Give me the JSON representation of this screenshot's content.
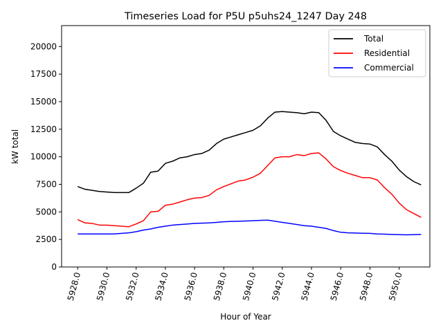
{
  "chart_data": {
    "type": "line",
    "title": "Timeseries Load for P5U p5uhs24_1247  Day 248",
    "xlabel": "Hour of Year",
    "ylabel": "kW total",
    "xlim": [
      5926.9,
      5952.1
    ],
    "ylim": [
      0,
      21900
    ],
    "xticks": [
      5928,
      5930,
      5932,
      5934,
      5936,
      5938,
      5940,
      5942,
      5944,
      5946,
      5948,
      5950
    ],
    "xtick_labels": [
      "5928.0",
      "5930.0",
      "5932.0",
      "5934.0",
      "5936.0",
      "5938.0",
      "5940.0",
      "5942.0",
      "5944.0",
      "5946.0",
      "5948.0",
      "5950.0"
    ],
    "yticks": [
      0,
      2500,
      5000,
      7500,
      10000,
      12500,
      15000,
      17500,
      20000
    ],
    "ytick_labels": [
      "0",
      "2500",
      "5000",
      "7500",
      "10000",
      "12500",
      "15000",
      "17500",
      "20000"
    ],
    "legend_position": "top-right",
    "series": [
      {
        "name": "Total",
        "color": "#000000",
        "x": [
          5928.0,
          5928.5,
          5929.0,
          5929.5,
          5930.0,
          5930.5,
          5931.0,
          5931.5,
          5932.0,
          5932.5,
          5933.0,
          5933.5,
          5934.0,
          5934.5,
          5935.0,
          5935.5,
          5936.0,
          5936.5,
          5937.0,
          5937.5,
          5938.0,
          5938.5,
          5939.0,
          5939.5,
          5940.0,
          5940.5,
          5941.0,
          5941.5,
          5942.0,
          5942.5,
          5943.0,
          5943.5,
          5944.0,
          5944.5,
          5945.0,
          5945.5,
          5946.0,
          5946.5,
          5947.0,
          5947.5,
          5948.0,
          5948.5,
          5949.0,
          5949.5,
          5950.0,
          5950.5,
          5951.0,
          5951.5
        ],
        "values": [
          7300,
          7050,
          6950,
          6850,
          6800,
          6750,
          6750,
          6750,
          7150,
          7600,
          8600,
          8700,
          9400,
          9600,
          9900,
          10000,
          10200,
          10300,
          10600,
          11200,
          11600,
          11800,
          12000,
          12200,
          12400,
          12800,
          13500,
          14050,
          14100,
          14050,
          14000,
          13900,
          14050,
          14000,
          13300,
          12300,
          11900,
          11600,
          11300,
          11200,
          11150,
          10900,
          10200,
          9600,
          8800,
          8200,
          7750,
          7450
        ]
      },
      {
        "name": "Residential",
        "color": "#ff0000",
        "x": [
          5928.0,
          5928.5,
          5929.0,
          5929.5,
          5930.0,
          5930.5,
          5931.0,
          5931.5,
          5932.0,
          5932.5,
          5933.0,
          5933.5,
          5934.0,
          5934.5,
          5935.0,
          5935.5,
          5936.0,
          5936.5,
          5937.0,
          5937.5,
          5938.0,
          5938.5,
          5939.0,
          5939.5,
          5940.0,
          5940.5,
          5941.0,
          5941.5,
          5942.0,
          5942.5,
          5943.0,
          5943.5,
          5944.0,
          5944.5,
          5945.0,
          5945.5,
          5946.0,
          5946.5,
          5947.0,
          5947.5,
          5948.0,
          5948.5,
          5949.0,
          5949.5,
          5950.0,
          5950.5,
          5951.0,
          5951.5
        ],
        "values": [
          4300,
          4000,
          3950,
          3800,
          3800,
          3750,
          3700,
          3650,
          3900,
          4200,
          5000,
          5050,
          5600,
          5700,
          5900,
          6100,
          6250,
          6300,
          6500,
          7000,
          7300,
          7550,
          7800,
          7900,
          8150,
          8500,
          9200,
          9900,
          10000,
          10000,
          10200,
          10100,
          10300,
          10350,
          9800,
          9100,
          8750,
          8500,
          8300,
          8100,
          8100,
          7900,
          7200,
          6600,
          5800,
          5200,
          4850,
          4500
        ]
      },
      {
        "name": "Commercial",
        "color": "#0000ff",
        "x": [
          5928.0,
          5928.5,
          5929.0,
          5929.5,
          5930.0,
          5930.5,
          5931.0,
          5931.5,
          5932.0,
          5932.5,
          5933.0,
          5933.5,
          5934.0,
          5934.5,
          5935.0,
          5935.5,
          5936.0,
          5936.5,
          5937.0,
          5937.5,
          5938.0,
          5938.5,
          5939.0,
          5939.5,
          5940.0,
          5940.5,
          5941.0,
          5941.5,
          5942.0,
          5942.5,
          5943.0,
          5943.5,
          5944.0,
          5944.5,
          5945.0,
          5945.5,
          5946.0,
          5946.5,
          5947.0,
          5947.5,
          5948.0,
          5948.5,
          5949.0,
          5949.5,
          5950.0,
          5950.5,
          5951.0,
          5951.5
        ],
        "values": [
          3000,
          3000,
          3000,
          3000,
          3000,
          3000,
          3050,
          3100,
          3200,
          3350,
          3450,
          3600,
          3700,
          3800,
          3850,
          3900,
          3950,
          3980,
          4000,
          4050,
          4100,
          4130,
          4150,
          4170,
          4200,
          4230,
          4250,
          4150,
          4050,
          3950,
          3850,
          3750,
          3700,
          3600,
          3500,
          3300,
          3150,
          3100,
          3080,
          3060,
          3050,
          3000,
          2980,
          2950,
          2930,
          2920,
          2930,
          2950
        ]
      }
    ]
  }
}
